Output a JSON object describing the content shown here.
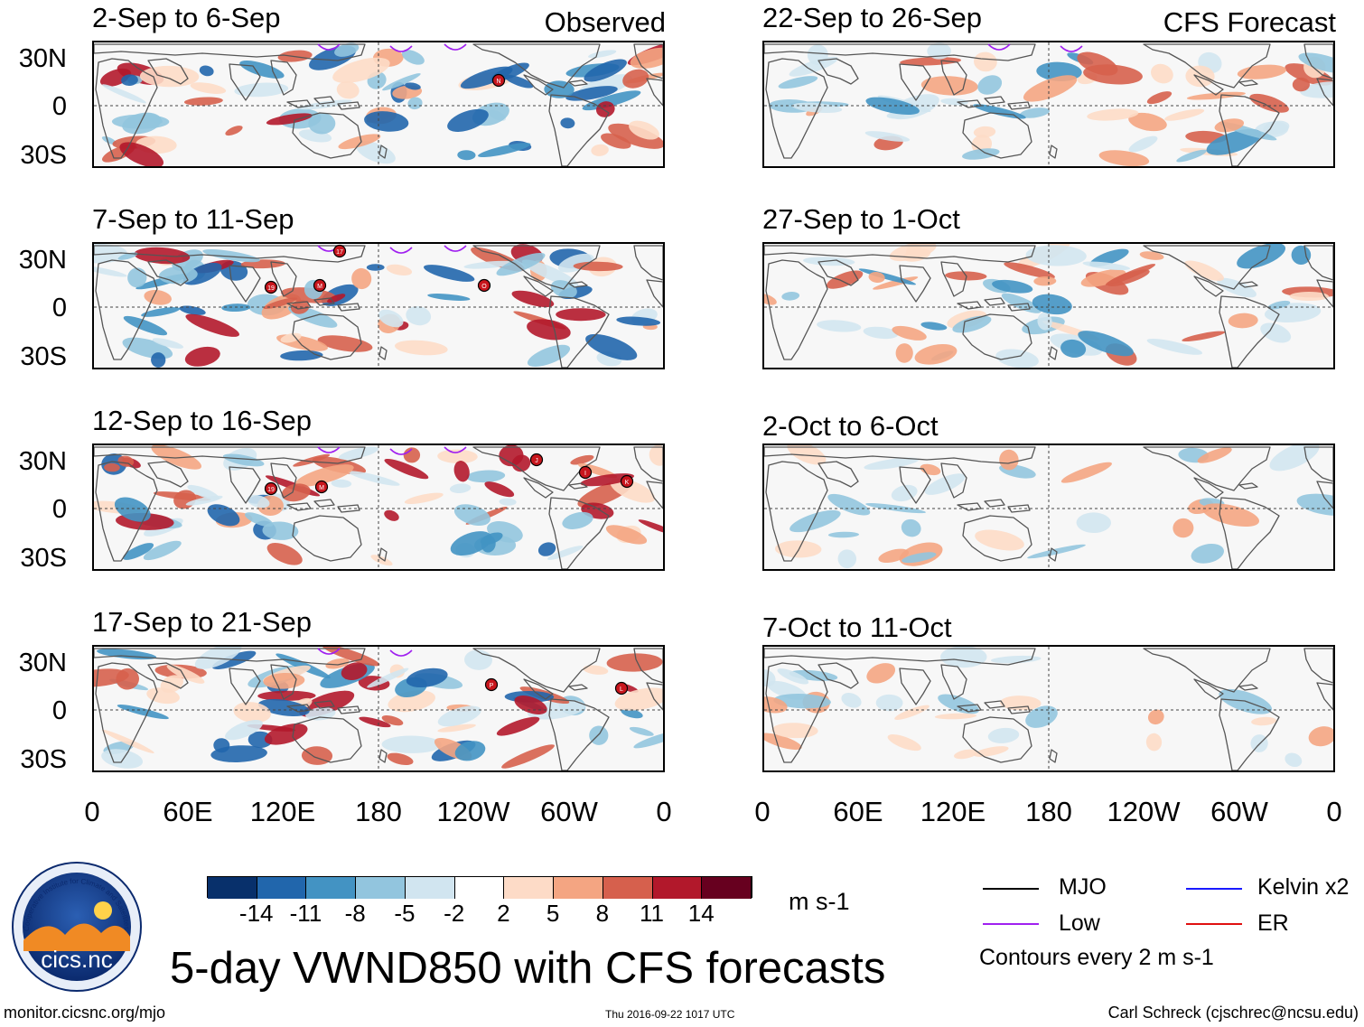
{
  "header": {
    "observed_label": "Observed",
    "forecast_label": "CFS Forecast"
  },
  "panels_left": [
    {
      "title": "2-Sep to 6-Sep",
      "storms": [
        {
          "label": "N"
        }
      ]
    },
    {
      "title": "7-Sep to 11-Sep",
      "storms": [
        {
          "label": "19"
        },
        {
          "label": "M"
        },
        {
          "label": "17"
        },
        {
          "label": "O"
        }
      ]
    },
    {
      "title": "12-Sep to 16-Sep",
      "storms": [
        {
          "label": "19"
        },
        {
          "label": "M"
        },
        {
          "label": "J"
        },
        {
          "label": "I"
        },
        {
          "label": "K"
        }
      ]
    },
    {
      "title": "17-Sep to 21-Sep",
      "storms": [
        {
          "label": "P"
        },
        {
          "label": "L"
        }
      ]
    }
  ],
  "panels_right": [
    {
      "title": "22-Sep to 26-Sep"
    },
    {
      "title": "27-Sep to 1-Oct"
    },
    {
      "title": "2-Oct to 6-Oct"
    },
    {
      "title": "7-Oct to 11-Oct"
    }
  ],
  "lat_labels": [
    "30N",
    "0",
    "30S"
  ],
  "lon_labels": [
    "0",
    "60E",
    "120E",
    "180",
    "120W",
    "60W",
    "0"
  ],
  "colorbar": {
    "colors": [
      "#08306b",
      "#2166ac",
      "#4393c3",
      "#92c5de",
      "#d1e5f0",
      "#ffffff",
      "#fddbc7",
      "#f4a582",
      "#d6604d",
      "#b2182b",
      "#67001f"
    ],
    "labels": [
      "-14",
      "-11",
      "-8",
      "-5",
      "-2",
      "2",
      "5",
      "8",
      "11",
      "14"
    ],
    "units": "m s-1"
  },
  "legend": {
    "items": [
      {
        "label": "MJO",
        "color": "#000000"
      },
      {
        "label": "Kelvin x2",
        "color": "#1a1aff"
      },
      {
        "label": "Low",
        "color": "#a020f0"
      },
      {
        "label": "ER",
        "color": "#e01010"
      }
    ],
    "contour_note": "Contours every 2 m s-1"
  },
  "logo": {
    "text": "cics.nc",
    "ring_text": "Cooperative Institute for Climate and Satellites"
  },
  "main_title": "5-day VWND850 with CFS forecasts",
  "footer": {
    "url": "monitor.cicsnc.org/mjo",
    "timestamp": "Thu 2016-09-22 1017 UTC",
    "author": "Carl Schreck (cjschrec@ncsu.edu)"
  }
}
